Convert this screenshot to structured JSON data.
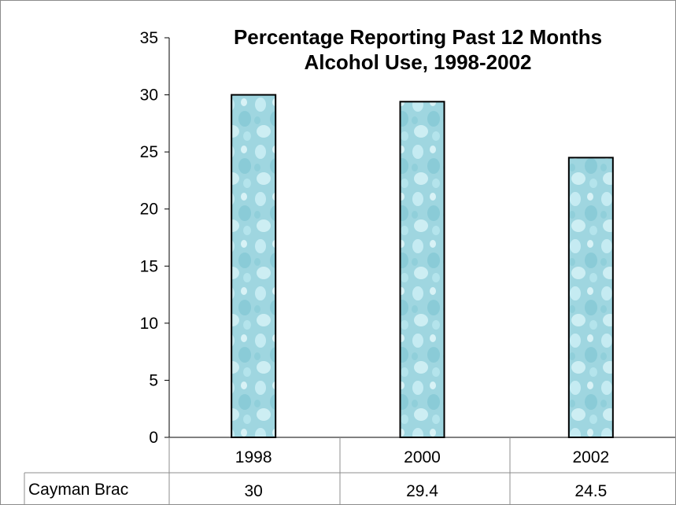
{
  "chart_data": {
    "type": "bar",
    "title": "Percentage Reporting Past 12 Months Alcohol Use, 1998-2002",
    "title_lines": [
      "Percentage Reporting Past 12 Months",
      "Alcohol Use, 1998-2002"
    ],
    "categories": [
      "1998",
      "2000",
      "2002"
    ],
    "series": [
      {
        "name": "Cayman Brac",
        "values": [
          30,
          29.4,
          24.5
        ]
      }
    ],
    "ylim": [
      0,
      35
    ],
    "yticks": [
      0,
      5,
      10,
      15,
      20,
      25,
      30,
      35
    ],
    "xlabel": "",
    "ylabel": "",
    "grid": false,
    "legend": "data table below chart",
    "data_table": {
      "row_label": "Cayman Brac",
      "values": [
        "30",
        "29.4",
        "24.5"
      ]
    },
    "bar_fill": "#a8dde6",
    "bar_stroke": "#000000"
  }
}
